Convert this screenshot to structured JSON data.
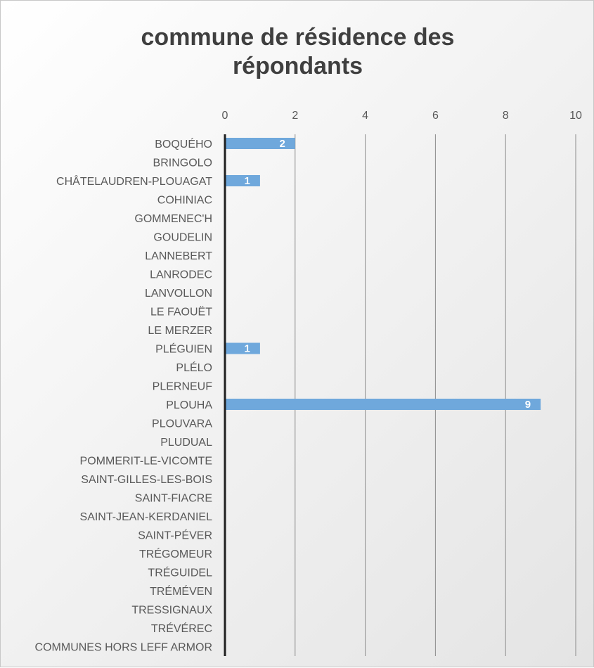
{
  "chart_data": {
    "type": "bar",
    "orientation": "horizontal",
    "title": "commune de résidence des répondants",
    "categories": [
      "BOQUÉHO",
      "BRINGOLO",
      "CHÂTELAUDREN-PLOUAGAT",
      "COHINIAC",
      "GOMMENEC'H",
      "GOUDELIN",
      "LANNEBERT",
      "LANRODEC",
      "LANVOLLON",
      "LE FAOUËT",
      "LE MERZER",
      "PLÉGUIEN",
      "PLÉLO",
      "PLERNEUF",
      "PLOUHA",
      "PLOUVARA",
      "PLUDUAL",
      "POMMERIT-LE-VICOMTE",
      "SAINT-GILLES-LES-BOIS",
      "SAINT-FIACRE",
      "SAINT-JEAN-KERDANIEL",
      "SAINT-PÉVER",
      "TRÉGOMEUR",
      "TRÉGUIDEL",
      "TRÉMÉVEN",
      "TRESSIGNAUX",
      "TRÉVÉREC",
      "COMMUNES HORS LEFF ARMOR"
    ],
    "values": [
      2,
      0,
      1,
      0,
      0,
      0,
      0,
      0,
      0,
      0,
      0,
      1,
      0,
      0,
      9,
      0,
      0,
      0,
      0,
      0,
      0,
      0,
      0,
      0,
      0,
      0,
      0,
      0
    ],
    "data_labels": [
      "2",
      "",
      "1",
      "",
      "",
      "",
      "",
      "",
      "",
      "",
      "",
      "1",
      "",
      "",
      "9",
      "",
      "",
      "",
      "",
      "",
      "",
      "",
      "",
      "",
      "",
      "",
      "",
      ""
    ],
    "xlim": [
      0,
      10
    ],
    "xticks": [
      "0",
      "2",
      "4",
      "6",
      "8",
      "10"
    ],
    "axis_position": "top",
    "grid": true,
    "legend": "none",
    "colors": {
      "bar": "#6fa8dc",
      "gridline": "#8c8c8c",
      "axis_line": "#1f1f1f",
      "text": "#595959",
      "title": "#3f3f3f"
    }
  }
}
